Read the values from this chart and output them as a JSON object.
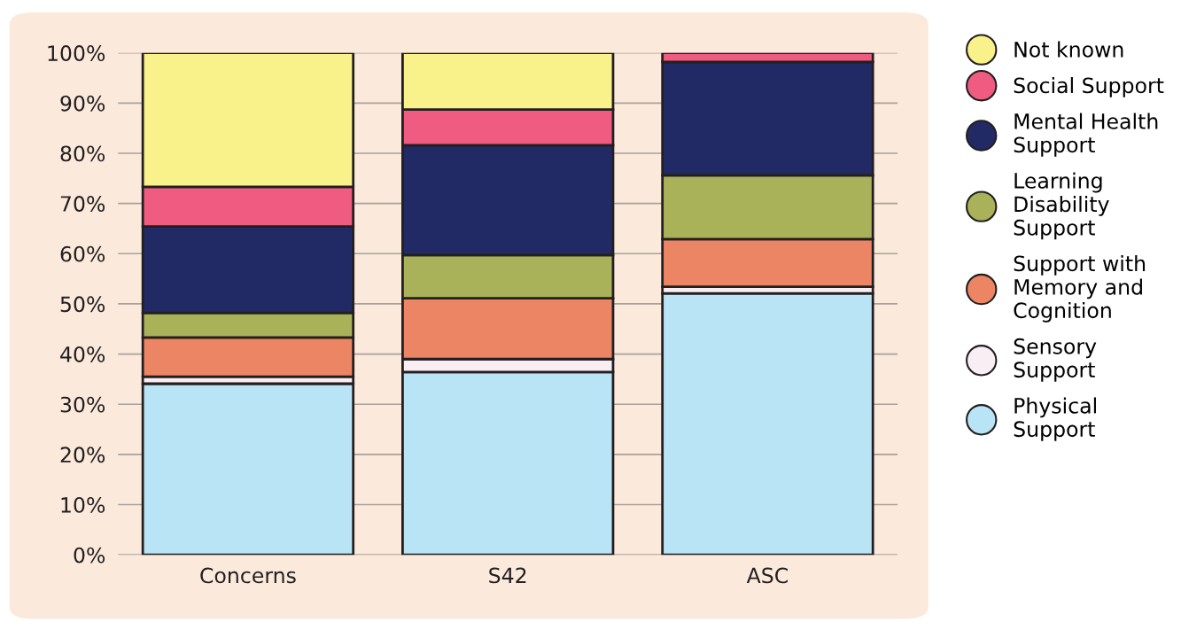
{
  "chart_data": {
    "type": "bar",
    "stacked": true,
    "categories": [
      "Concerns",
      "S42",
      "ASC"
    ],
    "series": [
      {
        "name": "Physical\nSupport",
        "color": "#b8e4f5",
        "values": [
          34.1,
          36.4,
          52.1
        ]
      },
      {
        "name": "Sensory\nSupport",
        "color": "#f9eef3",
        "values": [
          1.4,
          2.6,
          1.3
        ]
      },
      {
        "name": "Support with\nMemory and\nCognition",
        "color": "#eb8563",
        "values": [
          7.8,
          12.1,
          9.5
        ]
      },
      {
        "name": "Learning\nDisability\nSupport",
        "color": "#a9b259",
        "values": [
          4.9,
          8.6,
          12.7
        ]
      },
      {
        "name": "Mental Health\nSupport",
        "color": "#222a66",
        "values": [
          17.2,
          21.9,
          22.6
        ]
      },
      {
        "name": "Social Support",
        "color": "#ef5b81",
        "values": [
          7.9,
          7.1,
          1.8
        ]
      },
      {
        "name": "Not known",
        "color": "#f9f28b",
        "values": [
          26.7,
          11.3,
          null
        ]
      }
    ],
    "ylim": [
      0,
      100
    ],
    "yticks": [
      {
        "value": 0,
        "label": "0%"
      },
      {
        "value": 10,
        "label": "10%"
      },
      {
        "value": 20,
        "label": "20%"
      },
      {
        "value": 30,
        "label": "30%"
      },
      {
        "value": 40,
        "label": "40%"
      },
      {
        "value": 50,
        "label": "50%"
      },
      {
        "value": 60,
        "label": "60%"
      },
      {
        "value": 70,
        "label": "70%"
      },
      {
        "value": 80,
        "label": "80%"
      },
      {
        "value": 90,
        "label": "90%"
      },
      {
        "value": 100,
        "label": "100%"
      }
    ],
    "grid": "y",
    "legend": "right"
  }
}
